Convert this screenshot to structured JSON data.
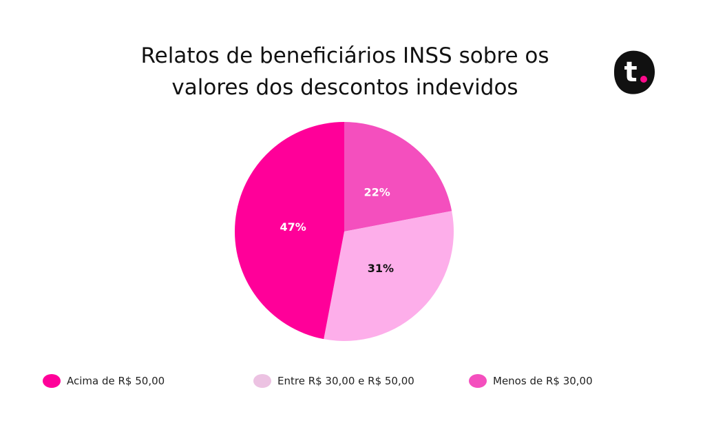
{
  "header": {
    "title_line1": "Relatos de beneficiários INSS sobre os",
    "title_line2": "valores dos descontos indevidos"
  },
  "logo": {
    "letter": "t",
    "icon": "brand-t-logo",
    "background": "#111111",
    "dot_color": "#ff0a8c"
  },
  "chart_data": {
    "type": "pie",
    "title": "Relatos de beneficiários INSS sobre os valores dos descontos indevidos",
    "slices": [
      {
        "label": "Menos de R$ 30,00",
        "value": 22,
        "display": "22%",
        "color": "#f44fbe",
        "label_color": "#ffffff"
      },
      {
        "label": "Entre R$ 30,00 e R$ 50,00",
        "value": 31,
        "display": "31%",
        "color": "#fdaeea",
        "label_color": "#111111"
      },
      {
        "label": "Acima de R$ 50,00",
        "value": 47,
        "display": "47%",
        "color": "#ff0099",
        "label_color": "#ffffff"
      }
    ],
    "legend_position": "bottom",
    "legend": [
      {
        "label": "Acima de R$ 50,00",
        "color": "#ff0099"
      },
      {
        "label": "Entre R$ 30,00 e R$ 50,00",
        "color": "#ecc2e2"
      },
      {
        "label": "Menos de R$ 30,00",
        "color": "#f44fbe"
      }
    ]
  }
}
